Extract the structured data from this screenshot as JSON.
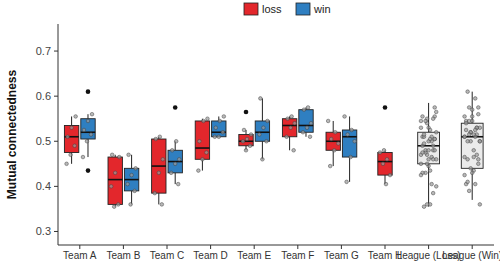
{
  "chart_data": {
    "type": "boxplot",
    "y_label": "Mutual connectedness",
    "categories": [
      "Team A",
      "Team B",
      "Team C",
      "Team D",
      "Team E",
      "Team F",
      "Team G",
      "Team H",
      "League (Loss)",
      "League (Win)"
    ],
    "ylim": [
      0.27,
      0.76
    ],
    "yticks": [
      0.3,
      0.4,
      0.5,
      0.6,
      0.7
    ],
    "legend": "top",
    "series": [
      {
        "name": "loss",
        "color": "#e3272c",
        "boxes": [
          {
            "min": 0.45,
            "q1": 0.475,
            "median": 0.51,
            "q3": 0.535,
            "max": 0.555,
            "outliers": [],
            "points": [
              0.45,
              0.47,
              0.49,
              0.51,
              0.53,
              0.555
            ]
          },
          {
            "min": 0.355,
            "q1": 0.36,
            "median": 0.415,
            "q3": 0.465,
            "max": 0.47,
            "outliers": [],
            "points": [
              0.355,
              0.36,
              0.4,
              0.43,
              0.465,
              0.47
            ]
          },
          {
            "min": 0.36,
            "q1": 0.385,
            "median": 0.445,
            "q3": 0.505,
            "max": 0.51,
            "outliers": [],
            "points": [
              0.36,
              0.385,
              0.43,
              0.46,
              0.505,
              0.51
            ]
          },
          {
            "min": 0.435,
            "q1": 0.46,
            "median": 0.485,
            "q3": 0.545,
            "max": 0.55,
            "outliers": [],
            "points": [
              0.435,
              0.46,
              0.475,
              0.5,
              0.545,
              0.55
            ]
          },
          {
            "min": 0.48,
            "q1": 0.49,
            "median": 0.5,
            "q3": 0.515,
            "max": 0.525,
            "outliers": [
              0.565
            ],
            "points": [
              0.48,
              0.49,
              0.5,
              0.505,
              0.515,
              0.525
            ]
          },
          {
            "min": 0.48,
            "q1": 0.51,
            "median": 0.535,
            "q3": 0.55,
            "max": 0.555,
            "outliers": [],
            "points": [
              0.48,
              0.51,
              0.53,
              0.54,
              0.55,
              0.555
            ]
          },
          {
            "min": 0.445,
            "q1": 0.48,
            "median": 0.5,
            "q3": 0.52,
            "max": 0.545,
            "outliers": [],
            "points": [
              0.445,
              0.48,
              0.495,
              0.505,
              0.52,
              0.545
            ]
          },
          {
            "min": 0.405,
            "q1": 0.425,
            "median": 0.455,
            "q3": 0.475,
            "max": 0.48,
            "outliers": [
              0.575
            ],
            "points": [
              0.405,
              0.425,
              0.45,
              0.46,
              0.475,
              0.48
            ]
          },
          null,
          null
        ]
      },
      {
        "name": "win",
        "color": "#2f7fc1",
        "boxes": [
          {
            "min": 0.465,
            "q1": 0.505,
            "median": 0.52,
            "q3": 0.55,
            "max": 0.56,
            "outliers": [
              0.61,
              0.435
            ],
            "points": [
              0.465,
              0.5,
              0.515,
              0.525,
              0.545,
              0.56
            ]
          },
          {
            "min": 0.36,
            "q1": 0.39,
            "median": 0.415,
            "q3": 0.44,
            "max": 0.47,
            "outliers": [],
            "points": [
              0.36,
              0.39,
              0.405,
              0.425,
              0.44,
              0.47
            ]
          },
          {
            "min": 0.405,
            "q1": 0.43,
            "median": 0.455,
            "q3": 0.48,
            "max": 0.5,
            "outliers": [
              0.575
            ],
            "points": [
              0.405,
              0.43,
              0.45,
              0.46,
              0.48,
              0.5
            ]
          },
          {
            "min": 0.51,
            "q1": 0.51,
            "median": 0.52,
            "q3": 0.545,
            "max": 0.555,
            "outliers": [],
            "points": [
              0.51,
              0.51,
              0.52,
              0.53,
              0.545,
              0.555
            ]
          },
          {
            "min": 0.46,
            "q1": 0.5,
            "median": 0.52,
            "q3": 0.545,
            "max": 0.595,
            "outliers": [],
            "points": [
              0.46,
              0.5,
              0.515,
              0.53,
              0.545,
              0.595
            ]
          },
          {
            "min": 0.51,
            "q1": 0.52,
            "median": 0.535,
            "q3": 0.57,
            "max": 0.575,
            "outliers": [],
            "points": [
              0.51,
              0.52,
              0.53,
              0.54,
              0.57,
              0.575
            ]
          },
          {
            "min": 0.41,
            "q1": 0.465,
            "median": 0.51,
            "q3": 0.525,
            "max": 0.555,
            "outliers": [],
            "points": [
              0.41,
              0.465,
              0.5,
              0.515,
              0.525,
              0.555
            ]
          },
          null,
          null,
          null
        ]
      }
    ],
    "league": {
      "color": "#ebebeb",
      "boxes": [
        null,
        null,
        null,
        null,
        null,
        null,
        null,
        null,
        {
          "min": 0.355,
          "q1": 0.45,
          "median": 0.49,
          "q3": 0.52,
          "max": 0.585,
          "outliers": []
        },
        {
          "min": 0.37,
          "q1": 0.44,
          "median": 0.51,
          "q3": 0.54,
          "max": 0.61,
          "outliers": []
        }
      ]
    }
  }
}
